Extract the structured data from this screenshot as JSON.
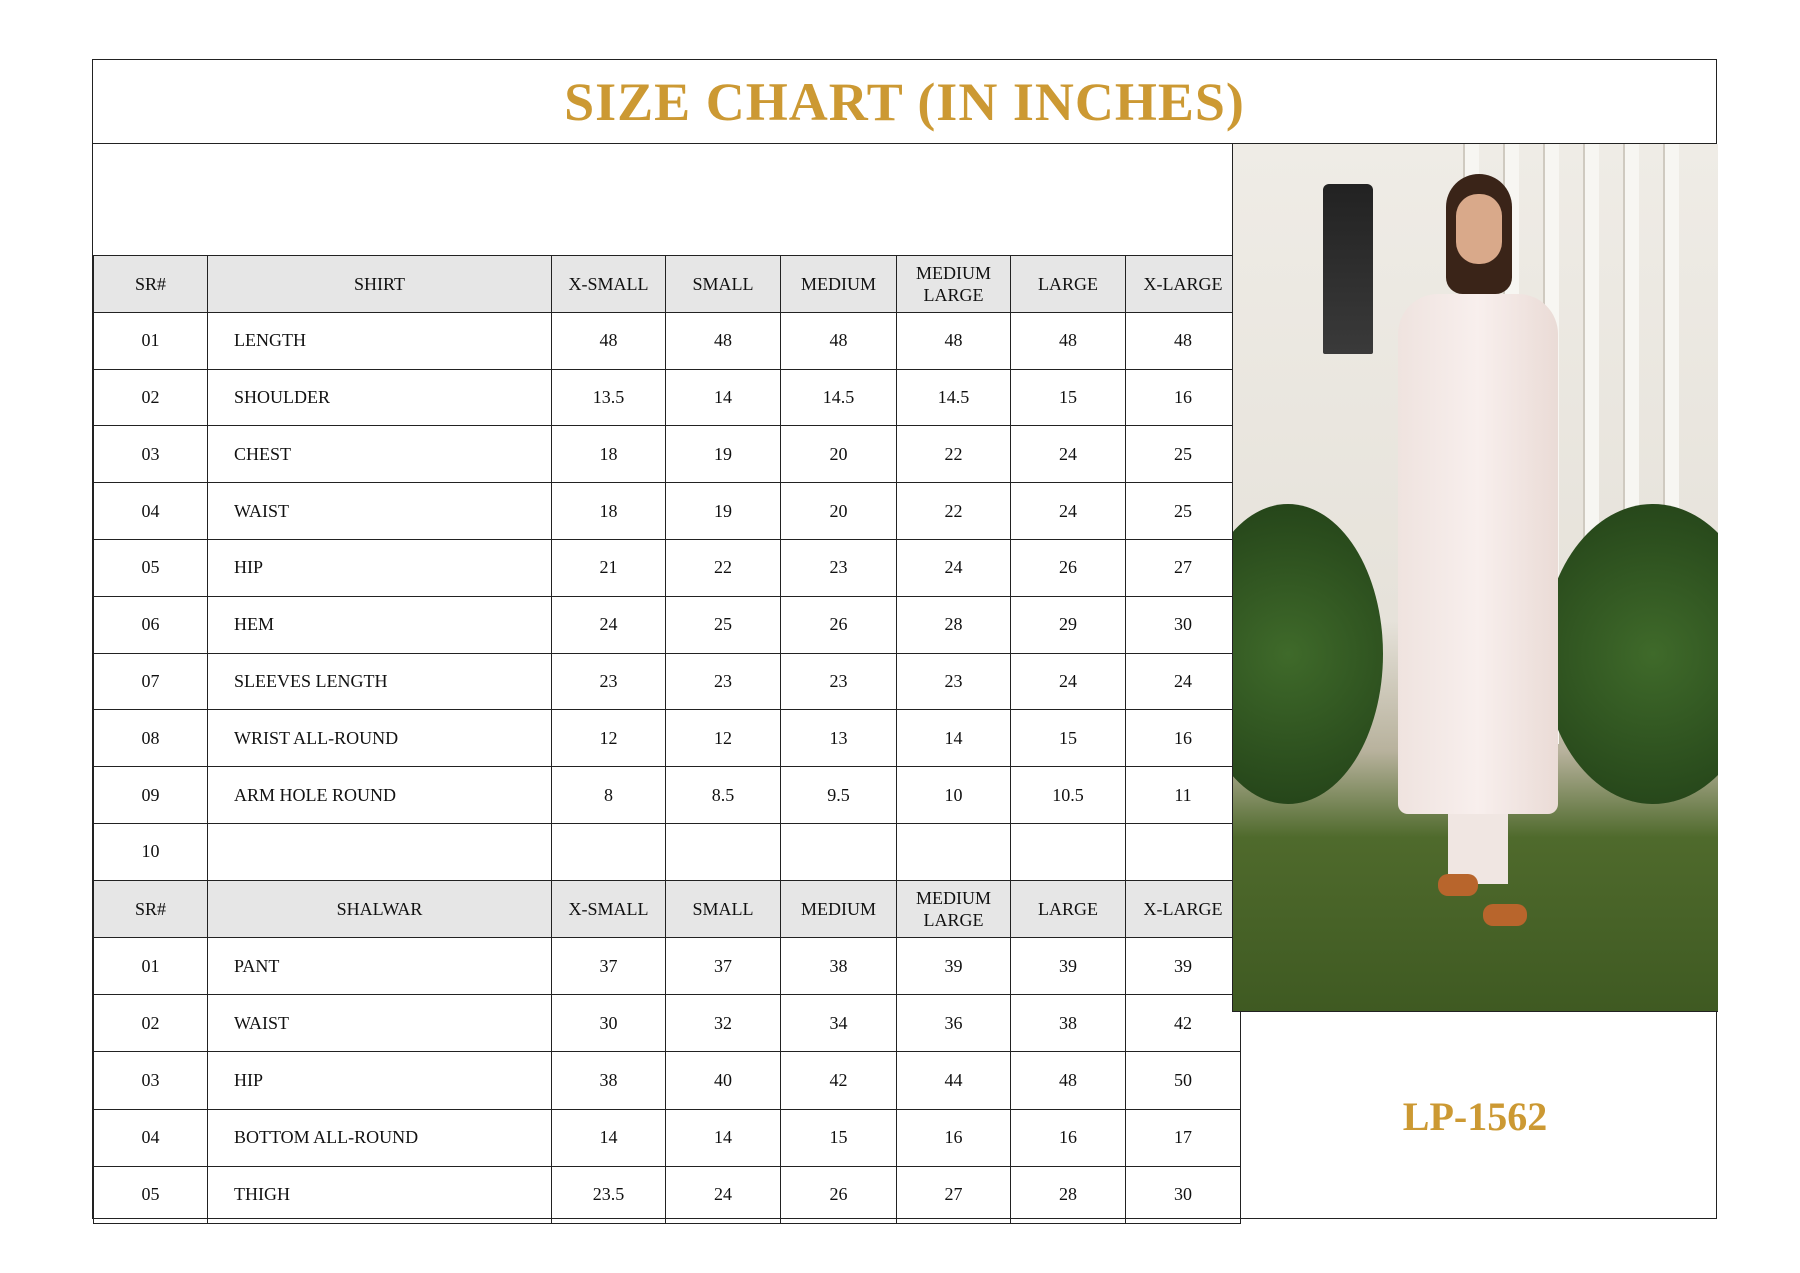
{
  "title": "SIZE CHART (IN INCHES)",
  "product_code": "LP-1562",
  "accent_color": "#cc9933",
  "size_headers": [
    "X-SMALL",
    "SMALL",
    "MEDIUM",
    "MEDIUM LARGE",
    "LARGE",
    "X-LARGE"
  ],
  "shirt": {
    "sr_header": "SR#",
    "header": "SHIRT",
    "rows": [
      {
        "sr": "01",
        "name": "LENGTH",
        "values": [
          "48",
          "48",
          "48",
          "48",
          "48",
          "48"
        ]
      },
      {
        "sr": "02",
        "name": "SHOULDER",
        "values": [
          "13.5",
          "14",
          "14.5",
          "14.5",
          "15",
          "16"
        ]
      },
      {
        "sr": "03",
        "name": "CHEST",
        "values": [
          "18",
          "19",
          "20",
          "22",
          "24",
          "25"
        ]
      },
      {
        "sr": "04",
        "name": "WAIST",
        "values": [
          "18",
          "19",
          "20",
          "22",
          "24",
          "25"
        ]
      },
      {
        "sr": "05",
        "name": "HIP",
        "values": [
          "21",
          "22",
          "23",
          "24",
          "26",
          "27"
        ]
      },
      {
        "sr": "06",
        "name": "HEM",
        "values": [
          "24",
          "25",
          "26",
          "28",
          "29",
          "30"
        ]
      },
      {
        "sr": "07",
        "name": "SLEEVES LENGTH",
        "values": [
          "23",
          "23",
          "23",
          "23",
          "24",
          "24"
        ]
      },
      {
        "sr": "08",
        "name": "WRIST ALL-ROUND",
        "values": [
          "12",
          "12",
          "13",
          "14",
          "15",
          "16"
        ]
      },
      {
        "sr": "09",
        "name": "ARM HOLE ROUND",
        "values": [
          "8",
          "8.5",
          "9.5",
          "10",
          "10.5",
          "11"
        ]
      },
      {
        "sr": "10",
        "name": "",
        "values": [
          "",
          "",
          "",
          "",
          "",
          ""
        ]
      }
    ]
  },
  "shalwar": {
    "sr_header": "SR#",
    "header": "SHALWAR",
    "rows": [
      {
        "sr": "01",
        "name": "PANT",
        "values": [
          "37",
          "37",
          "38",
          "39",
          "39",
          "39"
        ]
      },
      {
        "sr": "02",
        "name": "WAIST",
        "values": [
          "30",
          "32",
          "34",
          "36",
          "38",
          "42"
        ]
      },
      {
        "sr": "03",
        "name": "HIP",
        "values": [
          "38",
          "40",
          "42",
          "44",
          "48",
          "50"
        ]
      },
      {
        "sr": "04",
        "name": "BOTTOM ALL-ROUND",
        "values": [
          "14",
          "14",
          "15",
          "16",
          "16",
          "17"
        ]
      },
      {
        "sr": "05",
        "name": "THIGH",
        "values": [
          "23.5",
          "24",
          "26",
          "27",
          "28",
          "30"
        ]
      }
    ]
  }
}
